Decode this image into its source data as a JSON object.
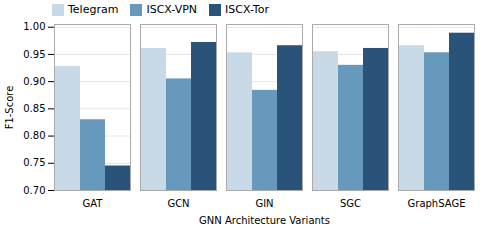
{
  "chart_data": {
    "type": "bar",
    "categories": [
      "GAT",
      "GCN",
      "GIN",
      "SGC",
      "GraphSAGE"
    ],
    "series": [
      {
        "name": "Telegram",
        "color": "#c8d9e8",
        "values": [
          0.928,
          0.961,
          0.953,
          0.955,
          0.966
        ]
      },
      {
        "name": "ISCX-VPN",
        "color": "#6699bb",
        "values": [
          0.83,
          0.905,
          0.884,
          0.93,
          0.953
        ]
      },
      {
        "name": "ISCX-Tor",
        "color": "#2a537a",
        "values": [
          0.745,
          0.972,
          0.966,
          0.961,
          0.989
        ]
      }
    ],
    "xlabel": "GNN Architecture Variants",
    "ylabel": "F1-Score",
    "ylim": [
      0.7,
      1.005
    ],
    "yticks": [
      {
        "value": 0.7,
        "label": "0.70"
      },
      {
        "value": 0.75,
        "label": "0.75"
      },
      {
        "value": 0.8,
        "label": "0.80"
      },
      {
        "value": 0.85,
        "label": "0.85"
      },
      {
        "value": 0.9,
        "label": "0.90"
      },
      {
        "value": 0.95,
        "label": "0.95"
      },
      {
        "value": 1.0,
        "label": "1.00"
      }
    ],
    "grid": true,
    "legend": "upper left"
  }
}
